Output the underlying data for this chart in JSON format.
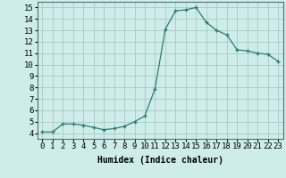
{
  "x": [
    0,
    1,
    2,
    3,
    4,
    5,
    6,
    7,
    8,
    9,
    10,
    11,
    12,
    13,
    14,
    15,
    16,
    17,
    18,
    19,
    20,
    21,
    22,
    23
  ],
  "y": [
    4.1,
    4.1,
    4.8,
    4.8,
    4.7,
    4.5,
    4.3,
    4.4,
    4.6,
    5.0,
    5.5,
    7.9,
    13.1,
    14.7,
    14.8,
    15.0,
    13.7,
    13.0,
    12.6,
    11.3,
    11.2,
    11.0,
    10.9,
    10.3
  ],
  "xlim": [
    -0.5,
    23.5
  ],
  "ylim": [
    3.5,
    15.5
  ],
  "xticks": [
    0,
    1,
    2,
    3,
    4,
    5,
    6,
    7,
    8,
    9,
    10,
    11,
    12,
    13,
    14,
    15,
    16,
    17,
    18,
    19,
    20,
    21,
    22,
    23
  ],
  "yticks": [
    4,
    5,
    6,
    7,
    8,
    9,
    10,
    11,
    12,
    13,
    14,
    15
  ],
  "xlabel": "Humidex (Indice chaleur)",
  "line_color": "#2e7d6e",
  "marker": "+",
  "bg_color": "#ceecea",
  "grid_color": "#aac8c4",
  "label_fontsize": 7,
  "tick_fontsize": 6.5
}
